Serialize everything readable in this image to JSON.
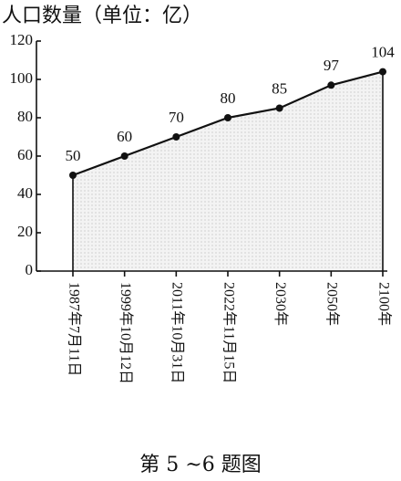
{
  "chart_data": {
    "type": "area",
    "title": "人口数量（单位：亿）",
    "categories": [
      "1987年7月11日",
      "1999年10月12日",
      "2011年10月31日",
      "2022年11月15日",
      "2030年",
      "2050年",
      "2100年"
    ],
    "values": [
      50,
      60,
      70,
      80,
      85,
      97,
      104
    ],
    "color": "#111111",
    "fill": "#ececec",
    "ylim": [
      0,
      120
    ],
    "yticks": [
      0,
      20,
      40,
      60,
      80,
      100,
      120
    ],
    "caption": "第 5 ~6 题图"
  }
}
